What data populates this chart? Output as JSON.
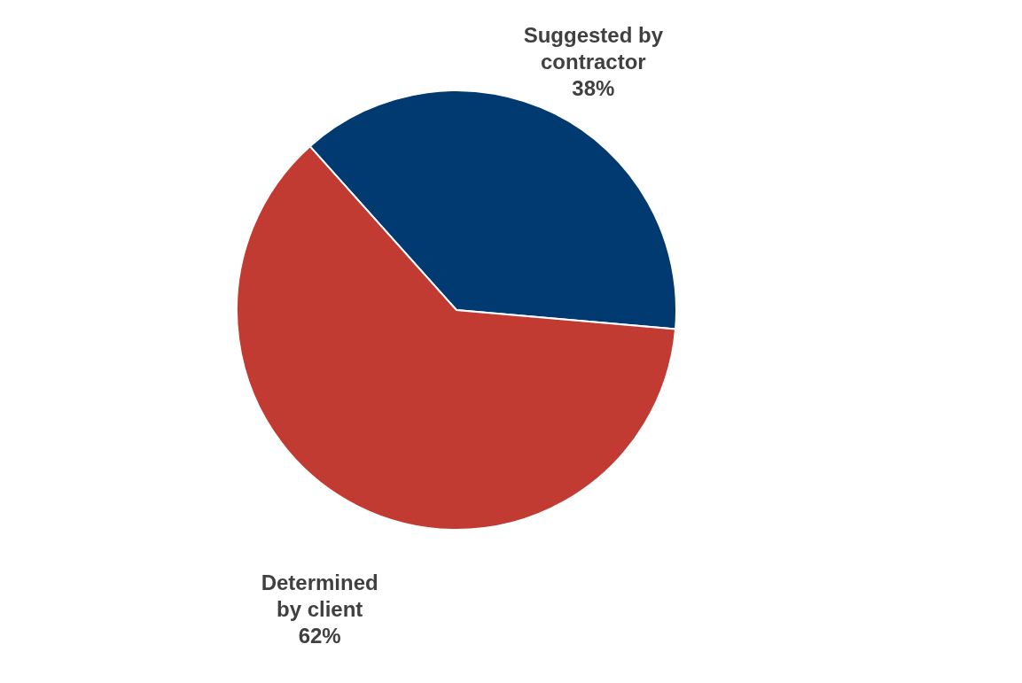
{
  "chart_data": {
    "type": "pie",
    "categories": [
      "Suggested by contractor",
      "Determined by client"
    ],
    "values": [
      38,
      62
    ],
    "colors": [
      "#003a70",
      "#c23b33"
    ],
    "value_labels": [
      "38%",
      "62%"
    ]
  }
}
